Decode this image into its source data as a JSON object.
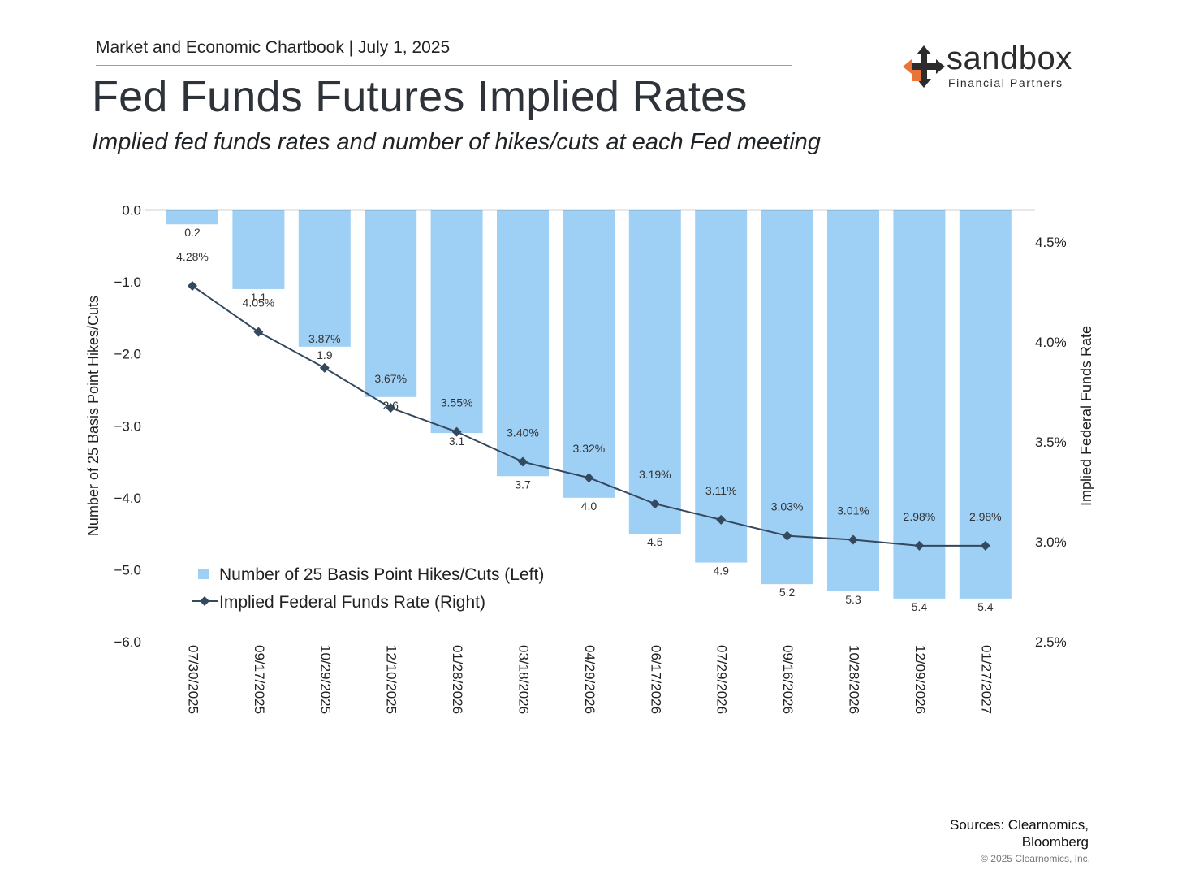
{
  "header": {
    "chartbook_line": "Market and Economic Chartbook | July 1, 2025",
    "title": "Fed Funds Futures Implied Rates",
    "subtitle": "Implied fed funds rates and number of hikes/cuts at each Fed meeting"
  },
  "logo": {
    "word": "sandbox",
    "tagline": "Financial Partners",
    "icon": "four-arrows-icon",
    "accent": "#e8743b",
    "dark": "#2c2c2c"
  },
  "footer": {
    "sources_line1": "Sources: Clearnomics,",
    "sources_line2": "Bloomberg",
    "copyright": "© 2025 Clearnomics, Inc."
  },
  "chart_data": {
    "type": "bar",
    "categories": [
      "07/30/2025",
      "09/17/2025",
      "10/29/2025",
      "12/10/2025",
      "01/28/2026",
      "03/18/2026",
      "04/29/2026",
      "06/17/2026",
      "07/29/2026",
      "09/16/2026",
      "10/28/2026",
      "12/09/2026",
      "01/27/2027"
    ],
    "series": [
      {
        "name": "Number of 25 Basis Point Hikes/Cuts (Left)",
        "type": "bar",
        "axis": "left",
        "values": [
          -0.2,
          -1.1,
          -1.9,
          -2.6,
          -3.1,
          -3.7,
          -4.0,
          -4.5,
          -4.9,
          -5.2,
          -5.3,
          -5.4,
          -5.4
        ],
        "labels": [
          "0.2",
          "1.1",
          "1.9",
          "2.6",
          "3.1",
          "3.7",
          "4.0",
          "4.5",
          "4.9",
          "5.2",
          "5.3",
          "5.4",
          "5.4"
        ],
        "color": "#9ecff5"
      },
      {
        "name": "Implied Federal Funds Rate (Right)",
        "type": "line",
        "axis": "right",
        "values": [
          4.28,
          4.05,
          3.87,
          3.67,
          3.55,
          3.4,
          3.32,
          3.19,
          3.11,
          3.03,
          3.01,
          2.98,
          2.98
        ],
        "labels": [
          "4.28%",
          "4.05%",
          "3.87%",
          "3.67%",
          "3.55%",
          "3.40%",
          "3.32%",
          "3.19%",
          "3.11%",
          "3.03%",
          "3.01%",
          "2.98%",
          "2.98%"
        ],
        "color": "#34495e"
      }
    ],
    "ylabel_left": "Number of 25 Basis Point Hikes/Cuts",
    "ylabel_right": "Implied Federal Funds Rate",
    "ylim_left": [
      -6.0,
      0.0
    ],
    "ylim_right": [
      2.5,
      4.66
    ],
    "left_ticks": [
      0.0,
      -1.0,
      -2.0,
      -3.0,
      -4.0,
      -5.0,
      -6.0
    ],
    "left_tick_labels": [
      "0.0",
      "−1.0",
      "−2.0",
      "−3.0",
      "−4.0",
      "−5.0",
      "−6.0"
    ],
    "right_ticks": [
      4.5,
      4.0,
      3.5,
      3.0,
      2.5
    ],
    "right_tick_labels": [
      "4.5%",
      "4.0%",
      "3.5%",
      "3.0%",
      "2.5%"
    ],
    "legend_placement": "bottom-left",
    "grid": false
  }
}
